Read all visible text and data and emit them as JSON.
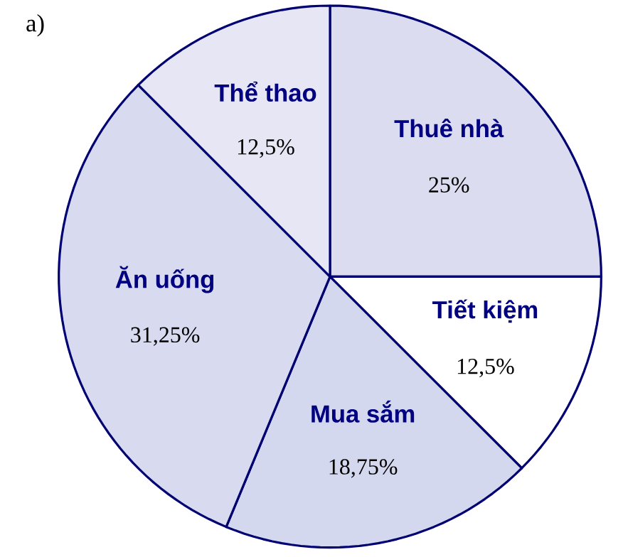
{
  "chart_data": {
    "type": "pie",
    "title": "a)",
    "categories": [
      "Thuê nhà",
      "Tiết kiệm",
      "Mua sắm",
      "Ăn uống",
      "Thể thao"
    ],
    "values": [
      25,
      12.5,
      18.75,
      31.25,
      12.5
    ],
    "value_labels": [
      "25%",
      "12,5%",
      "18,75%",
      "31,25%",
      "12,5%"
    ],
    "colors": [
      "#dcdcf0",
      "#ffffff",
      "#d4d8ee",
      "#d8dbef",
      "#e6e6f4"
    ]
  }
}
